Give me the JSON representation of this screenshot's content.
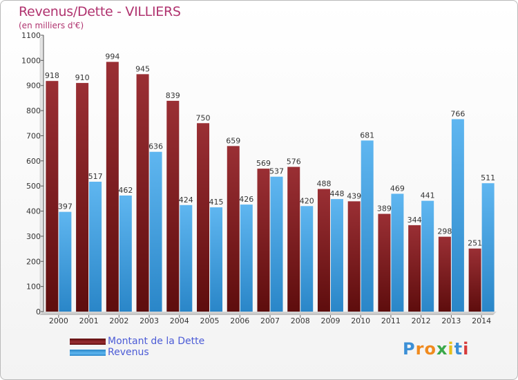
{
  "chart_data": {
    "type": "bar",
    "title": "Revenus/Dette - VILLIERS",
    "subtitle": "(en milliers d'€)",
    "categories": [
      "2000",
      "2001",
      "2002",
      "2003",
      "2004",
      "2005",
      "2006",
      "2007",
      "2008",
      "2009",
      "2010",
      "2011",
      "2012",
      "2013",
      "2014"
    ],
    "series": [
      {
        "name": "Montant de la Dette",
        "color": "#7a1c1c",
        "values": [
          918,
          910,
          994,
          945,
          839,
          750,
          659,
          569,
          576,
          488,
          439,
          389,
          344,
          298,
          251
        ]
      },
      {
        "name": "Revenus",
        "color": "#3d9ee0",
        "values": [
          397,
          517,
          462,
          636,
          424,
          415,
          426,
          537,
          420,
          448,
          681,
          469,
          441,
          766,
          511
        ]
      }
    ],
    "ylim": [
      0,
      1100
    ],
    "yticks": [
      0,
      100,
      200,
      300,
      400,
      500,
      600,
      700,
      800,
      900,
      1000,
      1100
    ],
    "grid": false,
    "legend_position": "bottom-left"
  },
  "logo": {
    "letters": [
      "P",
      "r",
      "o",
      "x",
      "i",
      "t",
      "i"
    ],
    "colors": [
      "#3b8fd6",
      "#f08a1e",
      "#f08a1e",
      "#3aa84a",
      "#e6c01b",
      "#3b8fd6",
      "#d63a3a"
    ]
  }
}
